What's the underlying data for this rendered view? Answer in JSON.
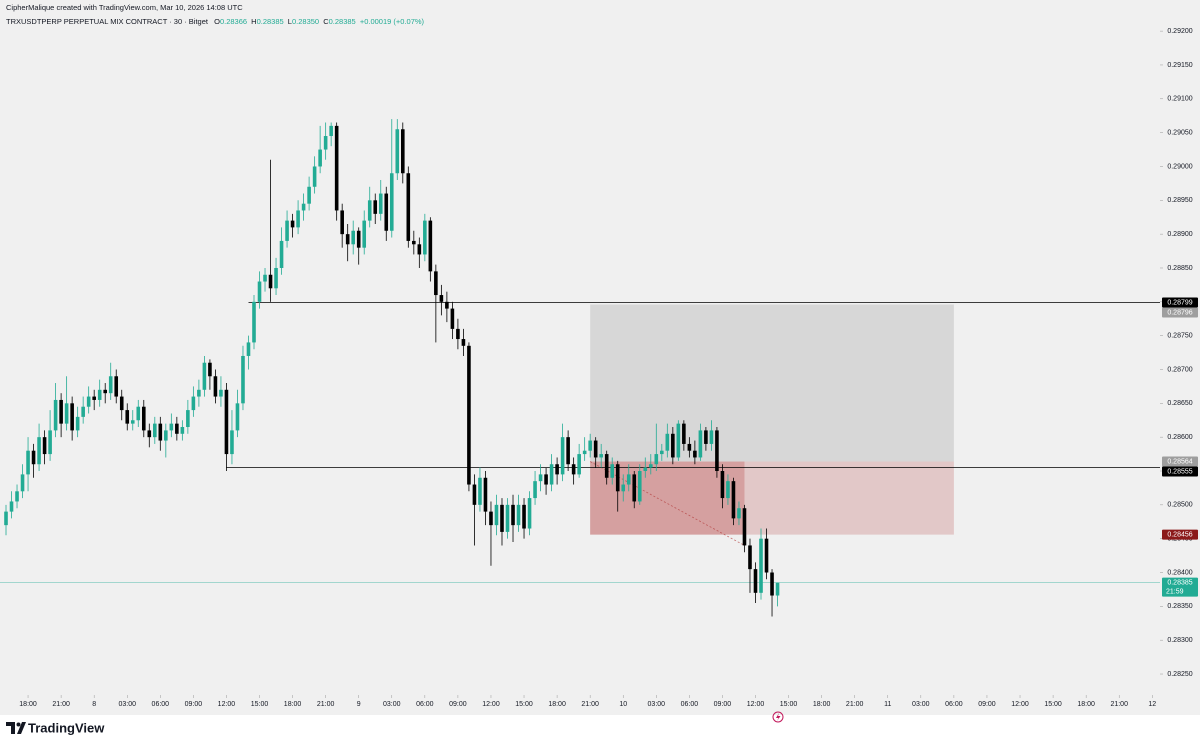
{
  "chart_data": {
    "type": "candlestick",
    "attribution": "CipherMalique created with TradingView.com, Mar 10, 2026 14:08 UTC",
    "symbol": "TRXUSDTPERP PERPETUAL MIX CONTRACT · 30 · Bitget",
    "ohlc_letters": [
      "O",
      "H",
      "L",
      "C"
    ],
    "header_values": [
      "0.28366",
      "0.28385",
      "0.28350",
      "0.28385"
    ],
    "change": "+0.00019 (+0.07%)",
    "brand": "TradingView",
    "up_color": "#22ab94",
    "down_color": "#000000",
    "ylim": [
      0.28219,
      0.29246
    ],
    "yticks": [
      {
        "value": 0.292,
        "label": "0.29200"
      },
      {
        "value": 0.2915,
        "label": "0.29150"
      },
      {
        "value": 0.291,
        "label": "0.29100"
      },
      {
        "value": 0.2905,
        "label": "0.29050"
      },
      {
        "value": 0.29,
        "label": "0.29000"
      },
      {
        "value": 0.2895,
        "label": "0.28950"
      },
      {
        "value": 0.289,
        "label": "0.28900"
      },
      {
        "value": 0.2885,
        "label": "0.28850"
      },
      {
        "value": 0.288,
        "label": "0.28800"
      },
      {
        "value": 0.2875,
        "label": "0.28750"
      },
      {
        "value": 0.287,
        "label": "0.28700"
      },
      {
        "value": 0.2865,
        "label": "0.28650"
      },
      {
        "value": 0.286,
        "label": "0.28600"
      },
      {
        "value": 0.2855,
        "label": "0.28550"
      },
      {
        "value": 0.285,
        "label": "0.28500"
      },
      {
        "value": 0.2845,
        "label": "0.28450"
      },
      {
        "value": 0.284,
        "label": "0.28400"
      },
      {
        "value": 0.2835,
        "label": "0.28350"
      },
      {
        "value": 0.283,
        "label": "0.28300"
      },
      {
        "value": 0.2825,
        "label": "0.28250"
      }
    ],
    "xlim": [
      -1.09,
      209.4
    ],
    "xticks": [
      {
        "value": 4,
        "label": "18:00"
      },
      {
        "value": 10,
        "label": "21:00"
      },
      {
        "value": 16,
        "label": "8"
      },
      {
        "value": 22,
        "label": "03:00"
      },
      {
        "value": 28,
        "label": "06:00"
      },
      {
        "value": 34,
        "label": "09:00"
      },
      {
        "value": 40,
        "label": "12:00"
      },
      {
        "value": 46,
        "label": "15:00"
      },
      {
        "value": 52,
        "label": "18:00"
      },
      {
        "value": 58,
        "label": "21:00"
      },
      {
        "value": 64,
        "label": "9"
      },
      {
        "value": 70,
        "label": "03:00"
      },
      {
        "value": 76,
        "label": "06:00"
      },
      {
        "value": 82,
        "label": "09:00"
      },
      {
        "value": 88,
        "label": "12:00"
      },
      {
        "value": 94,
        "label": "15:00"
      },
      {
        "value": 100,
        "label": "18:00"
      },
      {
        "value": 106,
        "label": "21:00"
      },
      {
        "value": 112,
        "label": "10"
      },
      {
        "value": 118,
        "label": "03:00"
      },
      {
        "value": 124,
        "label": "06:00"
      },
      {
        "value": 130,
        "label": "09:00"
      },
      {
        "value": 136,
        "label": "12:00"
      },
      {
        "value": 142,
        "label": "15:00"
      },
      {
        "value": 148,
        "label": "18:00"
      },
      {
        "value": 154,
        "label": "21:00"
      },
      {
        "value": 160,
        "label": "11"
      },
      {
        "value": 166,
        "label": "03:00"
      },
      {
        "value": 172,
        "label": "06:00"
      },
      {
        "value": 178,
        "label": "09:00"
      },
      {
        "value": 184,
        "label": "12:00"
      },
      {
        "value": 190,
        "label": "15:00"
      },
      {
        "value": 196,
        "label": "18:00"
      },
      {
        "value": 202,
        "label": "21:00"
      },
      {
        "value": 208,
        "label": "12"
      }
    ],
    "candles": [
      [
        0.2847,
        0.285,
        0.28455,
        0.2849
      ],
      [
        0.2849,
        0.2852,
        0.2848,
        0.28505
      ],
      [
        0.28505,
        0.2853,
        0.28495,
        0.2852
      ],
      [
        0.2852,
        0.2856,
        0.2851,
        0.28545
      ],
      [
        0.28545,
        0.286,
        0.2852,
        0.2858
      ],
      [
        0.2858,
        0.2859,
        0.2854,
        0.2856
      ],
      [
        0.2856,
        0.2862,
        0.2855,
        0.286
      ],
      [
        0.286,
        0.2861,
        0.2856,
        0.28575
      ],
      [
        0.28575,
        0.2864,
        0.28565,
        0.2861
      ],
      [
        0.2861,
        0.2868,
        0.286,
        0.28655
      ],
      [
        0.28655,
        0.28665,
        0.286,
        0.2862
      ],
      [
        0.2862,
        0.2869,
        0.2861,
        0.2865
      ],
      [
        0.2865,
        0.2866,
        0.28595,
        0.2861
      ],
      [
        0.2861,
        0.28645,
        0.286,
        0.2863
      ],
      [
        0.2863,
        0.2866,
        0.2862,
        0.28645
      ],
      [
        0.28645,
        0.28675,
        0.28635,
        0.2866
      ],
      [
        0.2866,
        0.2867,
        0.2864,
        0.28655
      ],
      [
        0.28655,
        0.28685,
        0.28645,
        0.2867
      ],
      [
        0.2867,
        0.2868,
        0.2865,
        0.28665
      ],
      [
        0.28665,
        0.2871,
        0.28655,
        0.2869
      ],
      [
        0.2869,
        0.287,
        0.2865,
        0.2866
      ],
      [
        0.2866,
        0.2867,
        0.28625,
        0.2864
      ],
      [
        0.2864,
        0.2865,
        0.2861,
        0.2862
      ],
      [
        0.2862,
        0.2864,
        0.2861,
        0.28625
      ],
      [
        0.28625,
        0.28655,
        0.28615,
        0.28645
      ],
      [
        0.28645,
        0.28655,
        0.286,
        0.2861
      ],
      [
        0.2861,
        0.2862,
        0.28585,
        0.286
      ],
      [
        0.286,
        0.2863,
        0.2859,
        0.2862
      ],
      [
        0.2862,
        0.2863,
        0.2858,
        0.28595
      ],
      [
        0.28595,
        0.2862,
        0.2857,
        0.2861
      ],
      [
        0.2861,
        0.28635,
        0.286,
        0.2862
      ],
      [
        0.2862,
        0.2863,
        0.28595,
        0.28605
      ],
      [
        0.28605,
        0.28625,
        0.28595,
        0.28615
      ],
      [
        0.28615,
        0.28655,
        0.28605,
        0.2864
      ],
      [
        0.2864,
        0.28675,
        0.2863,
        0.2866
      ],
      [
        0.2866,
        0.28685,
        0.28645,
        0.2867
      ],
      [
        0.2867,
        0.2872,
        0.2866,
        0.2871
      ],
      [
        0.2871,
        0.28715,
        0.2867,
        0.2869
      ],
      [
        0.2869,
        0.287,
        0.2865,
        0.2866
      ],
      [
        0.2866,
        0.2869,
        0.28645,
        0.2867
      ],
      [
        0.2867,
        0.2868,
        0.2855,
        0.28575
      ],
      [
        0.28575,
        0.2864,
        0.2856,
        0.2861
      ],
      [
        0.2861,
        0.2867,
        0.286,
        0.2865
      ],
      [
        0.2865,
        0.28735,
        0.2864,
        0.2872
      ],
      [
        0.2872,
        0.2875,
        0.287,
        0.2874
      ],
      [
        0.2874,
        0.2881,
        0.2873,
        0.288
      ],
      [
        0.288,
        0.28845,
        0.2879,
        0.2883
      ],
      [
        0.2883,
        0.2885,
        0.28815,
        0.2884
      ],
      [
        0.2884,
        0.2901,
        0.288,
        0.2882
      ],
      [
        0.2882,
        0.28865,
        0.2881,
        0.2885
      ],
      [
        0.2885,
        0.2891,
        0.2884,
        0.2889
      ],
      [
        0.2889,
        0.28935,
        0.2888,
        0.2892
      ],
      [
        0.2892,
        0.2893,
        0.28895,
        0.2891
      ],
      [
        0.2891,
        0.2895,
        0.289,
        0.28935
      ],
      [
        0.28935,
        0.2896,
        0.2892,
        0.28945
      ],
      [
        0.28945,
        0.28985,
        0.28935,
        0.2897
      ],
      [
        0.2897,
        0.29015,
        0.2896,
        0.29
      ],
      [
        0.29,
        0.2906,
        0.2899,
        0.29025
      ],
      [
        0.29025,
        0.29065,
        0.2901,
        0.29045
      ],
      [
        0.29045,
        0.29065,
        0.2903,
        0.2906
      ],
      [
        0.2906,
        0.29065,
        0.2892,
        0.28935
      ],
      [
        0.28935,
        0.28945,
        0.2888,
        0.289
      ],
      [
        0.289,
        0.28915,
        0.2886,
        0.28885
      ],
      [
        0.28885,
        0.2892,
        0.2887,
        0.28905
      ],
      [
        0.28905,
        0.2891,
        0.28855,
        0.2888
      ],
      [
        0.2888,
        0.28935,
        0.2887,
        0.2892
      ],
      [
        0.2892,
        0.2897,
        0.2891,
        0.2895
      ],
      [
        0.2895,
        0.2896,
        0.28915,
        0.2893
      ],
      [
        0.2893,
        0.2898,
        0.2892,
        0.2896
      ],
      [
        0.2896,
        0.2897,
        0.2889,
        0.28905
      ],
      [
        0.28905,
        0.2907,
        0.28895,
        0.2899
      ],
      [
        0.2899,
        0.2907,
        0.2898,
        0.29055
      ],
      [
        0.29055,
        0.29065,
        0.28975,
        0.2899
      ],
      [
        0.2899,
        0.29,
        0.2888,
        0.2889
      ],
      [
        0.2889,
        0.28905,
        0.2887,
        0.28885
      ],
      [
        0.28885,
        0.28895,
        0.2885,
        0.2887
      ],
      [
        0.2887,
        0.2893,
        0.2886,
        0.2892
      ],
      [
        0.2892,
        0.28925,
        0.2883,
        0.28845
      ],
      [
        0.28845,
        0.28855,
        0.2874,
        0.2881
      ],
      [
        0.2881,
        0.28825,
        0.2878,
        0.288
      ],
      [
        0.288,
        0.28815,
        0.2877,
        0.2879
      ],
      [
        0.2879,
        0.288,
        0.28745,
        0.2876
      ],
      [
        0.2876,
        0.28775,
        0.2873,
        0.28745
      ],
      [
        0.28745,
        0.2876,
        0.2872,
        0.28735
      ],
      [
        0.28735,
        0.2874,
        0.2852,
        0.2853
      ],
      [
        0.2853,
        0.28545,
        0.2844,
        0.285
      ],
      [
        0.285,
        0.28555,
        0.2849,
        0.2854
      ],
      [
        0.2854,
        0.2855,
        0.2847,
        0.2849
      ],
      [
        0.2849,
        0.28505,
        0.2841,
        0.2847
      ],
      [
        0.2847,
        0.28515,
        0.28455,
        0.285
      ],
      [
        0.285,
        0.2851,
        0.2844,
        0.2846
      ],
      [
        0.2846,
        0.2851,
        0.2845,
        0.285
      ],
      [
        0.285,
        0.28515,
        0.28445,
        0.2847
      ],
      [
        0.2847,
        0.28515,
        0.2846,
        0.285
      ],
      [
        0.285,
        0.2851,
        0.2845,
        0.28465
      ],
      [
        0.28465,
        0.2852,
        0.28455,
        0.2851
      ],
      [
        0.2851,
        0.2855,
        0.285,
        0.28535
      ],
      [
        0.28535,
        0.2856,
        0.2852,
        0.28545
      ],
      [
        0.28545,
        0.28555,
        0.28515,
        0.2853
      ],
      [
        0.2853,
        0.28575,
        0.2852,
        0.2856
      ],
      [
        0.2856,
        0.2857,
        0.2853,
        0.28545
      ],
      [
        0.28545,
        0.2862,
        0.28535,
        0.286
      ],
      [
        0.286,
        0.2861,
        0.2855,
        0.2856
      ],
      [
        0.2856,
        0.2857,
        0.2853,
        0.28545
      ],
      [
        0.28545,
        0.2859,
        0.2854,
        0.28575
      ],
      [
        0.28575,
        0.286,
        0.28565,
        0.2858
      ],
      [
        0.2858,
        0.28605,
        0.2857,
        0.28595
      ],
      [
        0.28595,
        0.286,
        0.28555,
        0.2857
      ],
      [
        0.2857,
        0.2859,
        0.28555,
        0.28575
      ],
      [
        0.28575,
        0.2858,
        0.2853,
        0.2854
      ],
      [
        0.2854,
        0.2857,
        0.2853,
        0.2856
      ],
      [
        0.2856,
        0.28565,
        0.2849,
        0.2852
      ],
      [
        0.2852,
        0.28545,
        0.28505,
        0.2853
      ],
      [
        0.2853,
        0.2856,
        0.2852,
        0.28545
      ],
      [
        0.28545,
        0.2855,
        0.28495,
        0.28505
      ],
      [
        0.28505,
        0.2856,
        0.285,
        0.2855
      ],
      [
        0.2855,
        0.2857,
        0.2854,
        0.28555
      ],
      [
        0.28555,
        0.28575,
        0.28545,
        0.2856
      ],
      [
        0.2856,
        0.2862,
        0.2855,
        0.28575
      ],
      [
        0.28575,
        0.2859,
        0.28565,
        0.2858
      ],
      [
        0.2858,
        0.2862,
        0.2857,
        0.28605
      ],
      [
        0.28605,
        0.28615,
        0.2856,
        0.2857
      ],
      [
        0.2857,
        0.28625,
        0.28565,
        0.2862
      ],
      [
        0.2862,
        0.28625,
        0.2858,
        0.2859
      ],
      [
        0.2859,
        0.286,
        0.2857,
        0.2858
      ],
      [
        0.2858,
        0.28595,
        0.2856,
        0.2857
      ],
      [
        0.2857,
        0.2862,
        0.28565,
        0.2861
      ],
      [
        0.2861,
        0.28615,
        0.2858,
        0.2859
      ],
      [
        0.2859,
        0.28625,
        0.2858,
        0.2861
      ],
      [
        0.2861,
        0.28615,
        0.2854,
        0.2855
      ],
      [
        0.2855,
        0.2856,
        0.28495,
        0.2851
      ],
      [
        0.2851,
        0.28545,
        0.285,
        0.28535
      ],
      [
        0.28535,
        0.2854,
        0.2847,
        0.2848
      ],
      [
        0.2848,
        0.28505,
        0.2847,
        0.28495
      ],
      [
        0.28495,
        0.285,
        0.2843,
        0.2844
      ],
      [
        0.2844,
        0.2845,
        0.2837,
        0.28405
      ],
      [
        0.28405,
        0.28415,
        0.28355,
        0.2837
      ],
      [
        0.2837,
        0.28465,
        0.2836,
        0.2845
      ],
      [
        0.2845,
        0.28465,
        0.2839,
        0.284
      ],
      [
        0.284,
        0.28405,
        0.28335,
        0.28366
      ],
      [
        0.28366,
        0.28385,
        0.2835,
        0.28385
      ]
    ],
    "hlines": [
      {
        "value": 0.28799,
        "from": 44,
        "color": "#000000"
      },
      {
        "value": 0.28555,
        "from": 40,
        "color": "#000000"
      }
    ],
    "position": {
      "target": 0.28796,
      "entry": 0.28564,
      "stop": 0.28456,
      "start": 106,
      "end": 172,
      "progress_end": 134,
      "target_color": "#9e9e9e",
      "stop_color": "#b23a3a"
    },
    "price_labels": [
      {
        "value": 0.28799,
        "label": "0.28799",
        "color": "#000000"
      },
      {
        "value": 0.28796,
        "label": "0.28796",
        "color": "#9e9e9e"
      },
      {
        "value": 0.28564,
        "label": "0.28564",
        "color": "#9e9e9e"
      },
      {
        "value": 0.28555,
        "label": "0.28555",
        "color": "#000000"
      },
      {
        "value": 0.28456,
        "label": "0.28456",
        "color": "#8b1a1a"
      },
      {
        "value": 0.28385,
        "label": "0.28385",
        "color": "#22ab94"
      }
    ],
    "countdown": "21:59"
  }
}
